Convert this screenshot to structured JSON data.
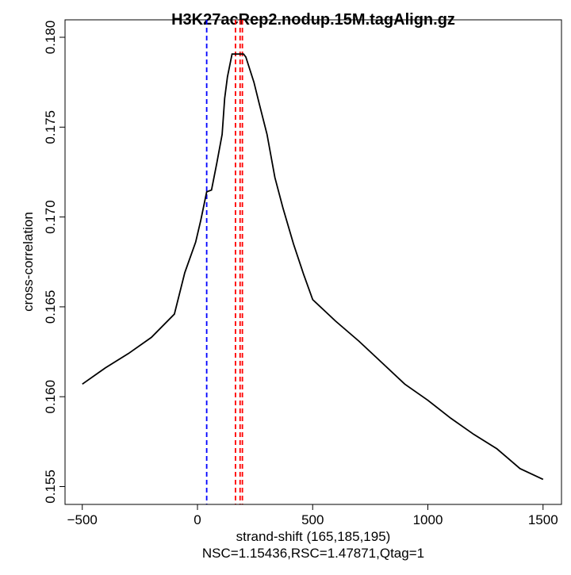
{
  "chart_data": {
    "type": "line",
    "title": "H3K27acRep2.nodup.15M.tagAlign.gz",
    "xlabel": "strand-shift (165,185,195)",
    "subtitle": "NSC=1.15436,RSC=1.47871,Qtag=1",
    "ylabel": "cross-correlation",
    "xlim": [
      -540,
      1540
    ],
    "ylim": [
      0.1544,
      0.1807
    ],
    "xticks": [
      -500,
      0,
      500,
      1000,
      1500
    ],
    "xtick_labels": [
      "−500",
      "0",
      "500",
      "1000",
      "1500"
    ],
    "yticks": [
      0.155,
      0.16,
      0.165,
      0.17,
      0.175,
      0.18
    ],
    "ytick_labels": [
      "0.155",
      "0.160",
      "0.165",
      "0.170",
      "0.175",
      "0.180"
    ],
    "grid": false,
    "series": [
      {
        "color": "#000000",
        "x": [
          -500,
          -400,
          -300,
          -200,
          -100,
          -55,
          -8,
          14,
          40,
          61,
          84,
          107,
          118,
          130,
          150,
          170,
          200,
          210,
          245,
          268,
          302,
          336,
          371,
          417,
          461,
          500,
          600,
          700,
          800,
          900,
          1000,
          1100,
          1200,
          1300,
          1400,
          1500
        ],
        "y": [
          0.1607,
          0.1616,
          0.1624,
          0.1633,
          0.1646,
          0.1669,
          0.1686,
          0.1698,
          0.1714,
          0.1715,
          0.173,
          0.1746,
          0.1766,
          0.1778,
          0.17907,
          0.17907,
          0.17907,
          0.1789,
          0.1775,
          0.1763,
          0.1746,
          0.1722,
          0.1705,
          0.1685,
          0.1668,
          0.1654,
          0.1642,
          0.1631,
          0.1619,
          0.1607,
          0.1598,
          0.1588,
          0.1579,
          0.1571,
          0.156,
          0.1554
        ]
      }
    ],
    "vlines": [
      {
        "x": 40,
        "color": "#0000ff",
        "style": "dashed"
      },
      {
        "x": 165,
        "color": "#ff0000",
        "style": "dashed"
      },
      {
        "x": 185,
        "color": "#ff0000",
        "style": "dashed"
      },
      {
        "x": 195,
        "color": "#ff0000",
        "style": "dashed"
      }
    ]
  }
}
